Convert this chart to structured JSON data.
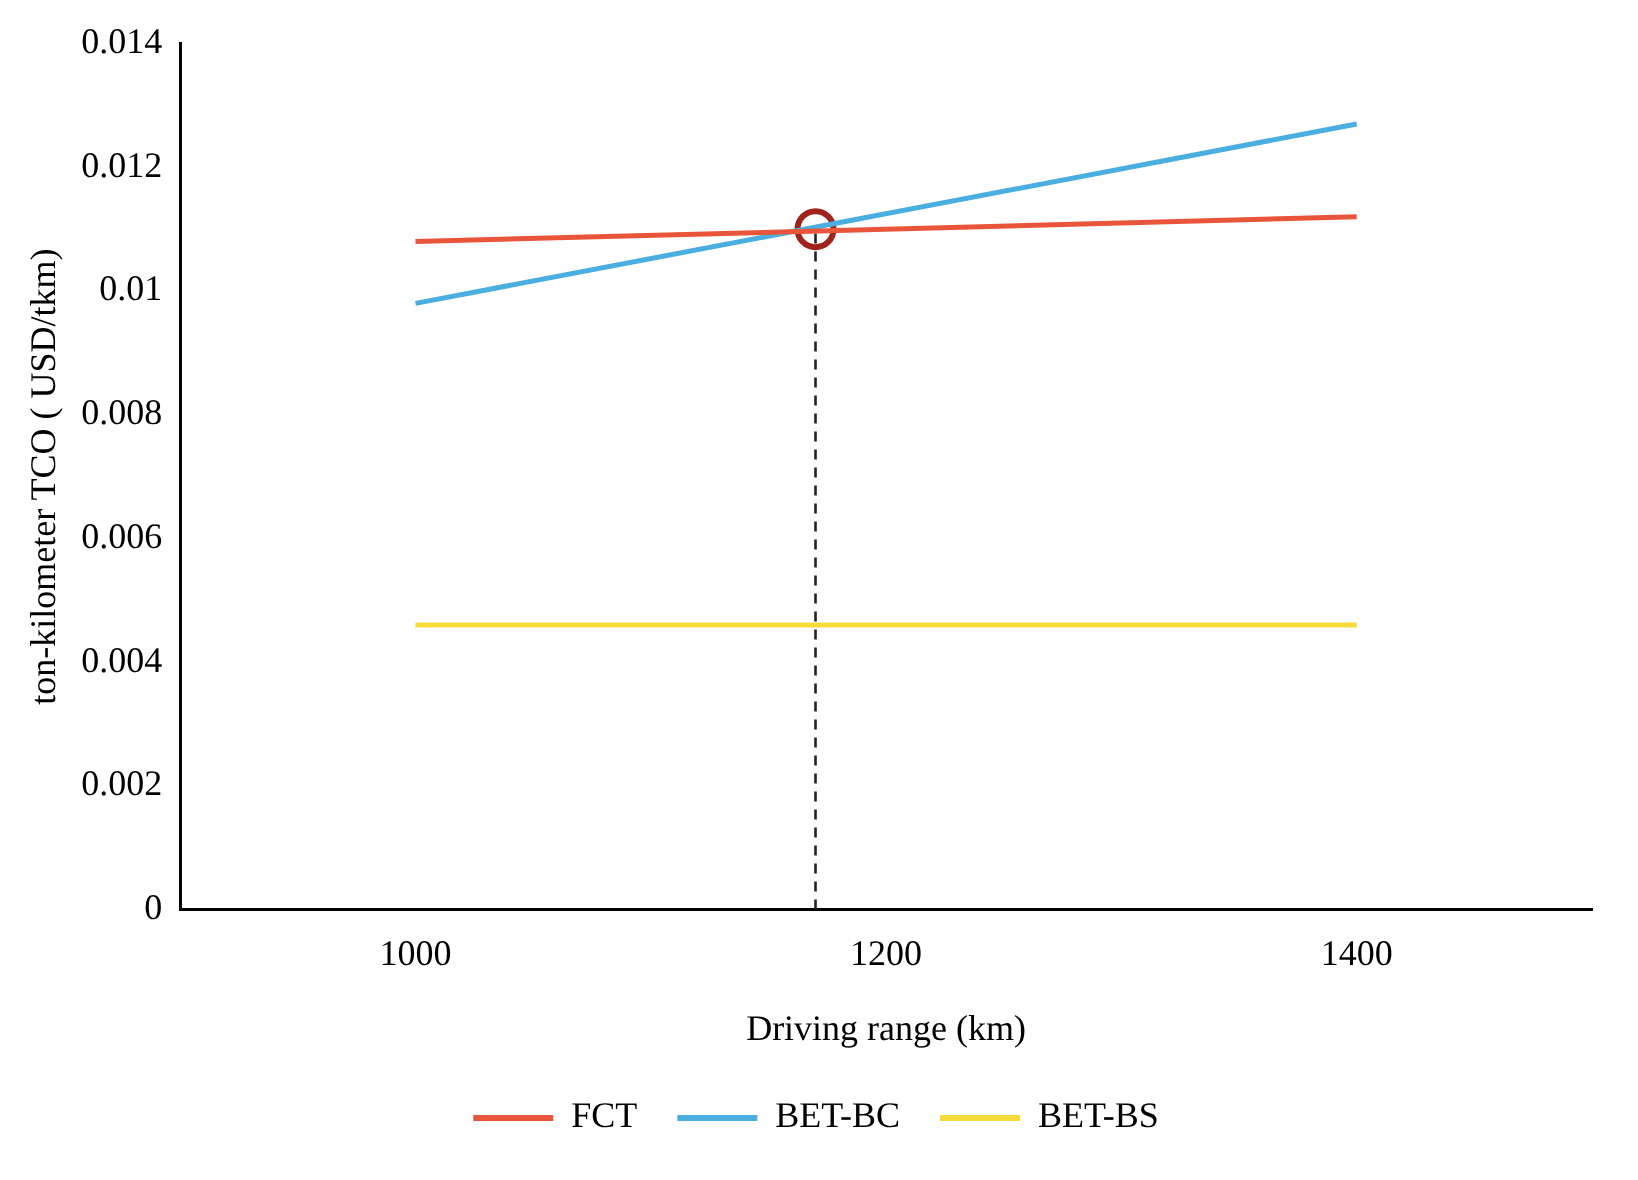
{
  "chart_data": {
    "type": "line",
    "xlabel": "Driving range (km)",
    "ylabel": "ton-kilometer TCO ( USD/tkm)",
    "x": [
      1000,
      1400
    ],
    "xlim": [
      900,
      1500
    ],
    "xticks": [
      1000,
      1200,
      1400
    ],
    "ylim": [
      0,
      0.014
    ],
    "yticks": [
      0,
      0.002,
      0.004,
      0.006,
      0.008,
      0.01,
      0.012,
      0.014
    ],
    "grid": false,
    "legend": "bottom",
    "marker": "none",
    "series": [
      {
        "name": "FCT",
        "color": "#e8553a",
        "values": [
          0.0108,
          0.0112
        ]
      },
      {
        "name": "BET-BC",
        "color": "#4aaee0",
        "values": [
          0.0098,
          0.0127
        ]
      },
      {
        "name": "BET-BS",
        "color": "#f5dc3c",
        "values": [
          0.0046,
          0.0046
        ]
      },
      {
        "type": "scatter",
        "color": "#a0231c",
        "marker": "circle",
        "x": [
          1170
        ],
        "values": [
          0.011
        ]
      }
    ],
    "ref_lines": [
      {
        "axis": "x",
        "value": 1170,
        "color": "#222222",
        "line_style": "dashed"
      }
    ]
  }
}
